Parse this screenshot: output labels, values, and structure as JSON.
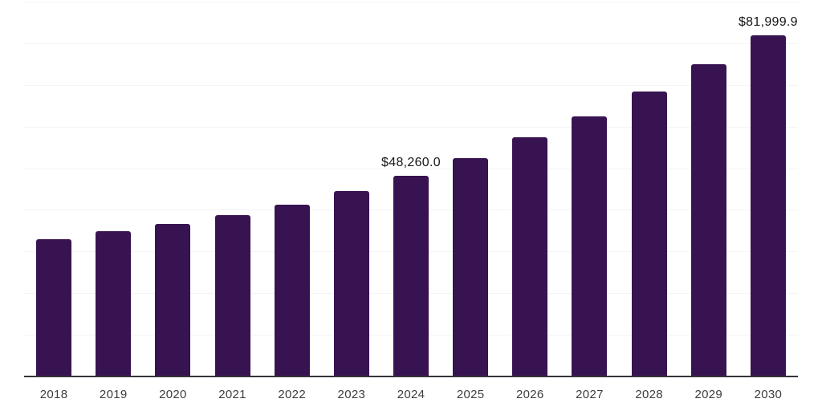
{
  "chart_data": {
    "type": "bar",
    "title": "",
    "xlabel": "",
    "ylabel": "",
    "categories": [
      "2018",
      "2019",
      "2020",
      "2021",
      "2022",
      "2023",
      "2024",
      "2025",
      "2026",
      "2027",
      "2028",
      "2029",
      "2030"
    ],
    "values": [
      33000,
      34800,
      36700,
      38800,
      41300,
      44600,
      48260.0,
      52500,
      57400,
      62500,
      68400,
      75000,
      81999.9
    ],
    "data_labels": {
      "2024": "$48,260.0",
      "2030": "$81,999.9"
    },
    "ylim": [
      0,
      90000
    ],
    "grid_step": 10000,
    "grid": "horizontal-only",
    "legend": "none",
    "colors": {
      "bar": "#381351",
      "gridline": "#f4f4f4",
      "axis_line": "#36333a",
      "tick_label": "#3d3d3d",
      "data_label": "#161616",
      "background": "#ffffff"
    }
  }
}
